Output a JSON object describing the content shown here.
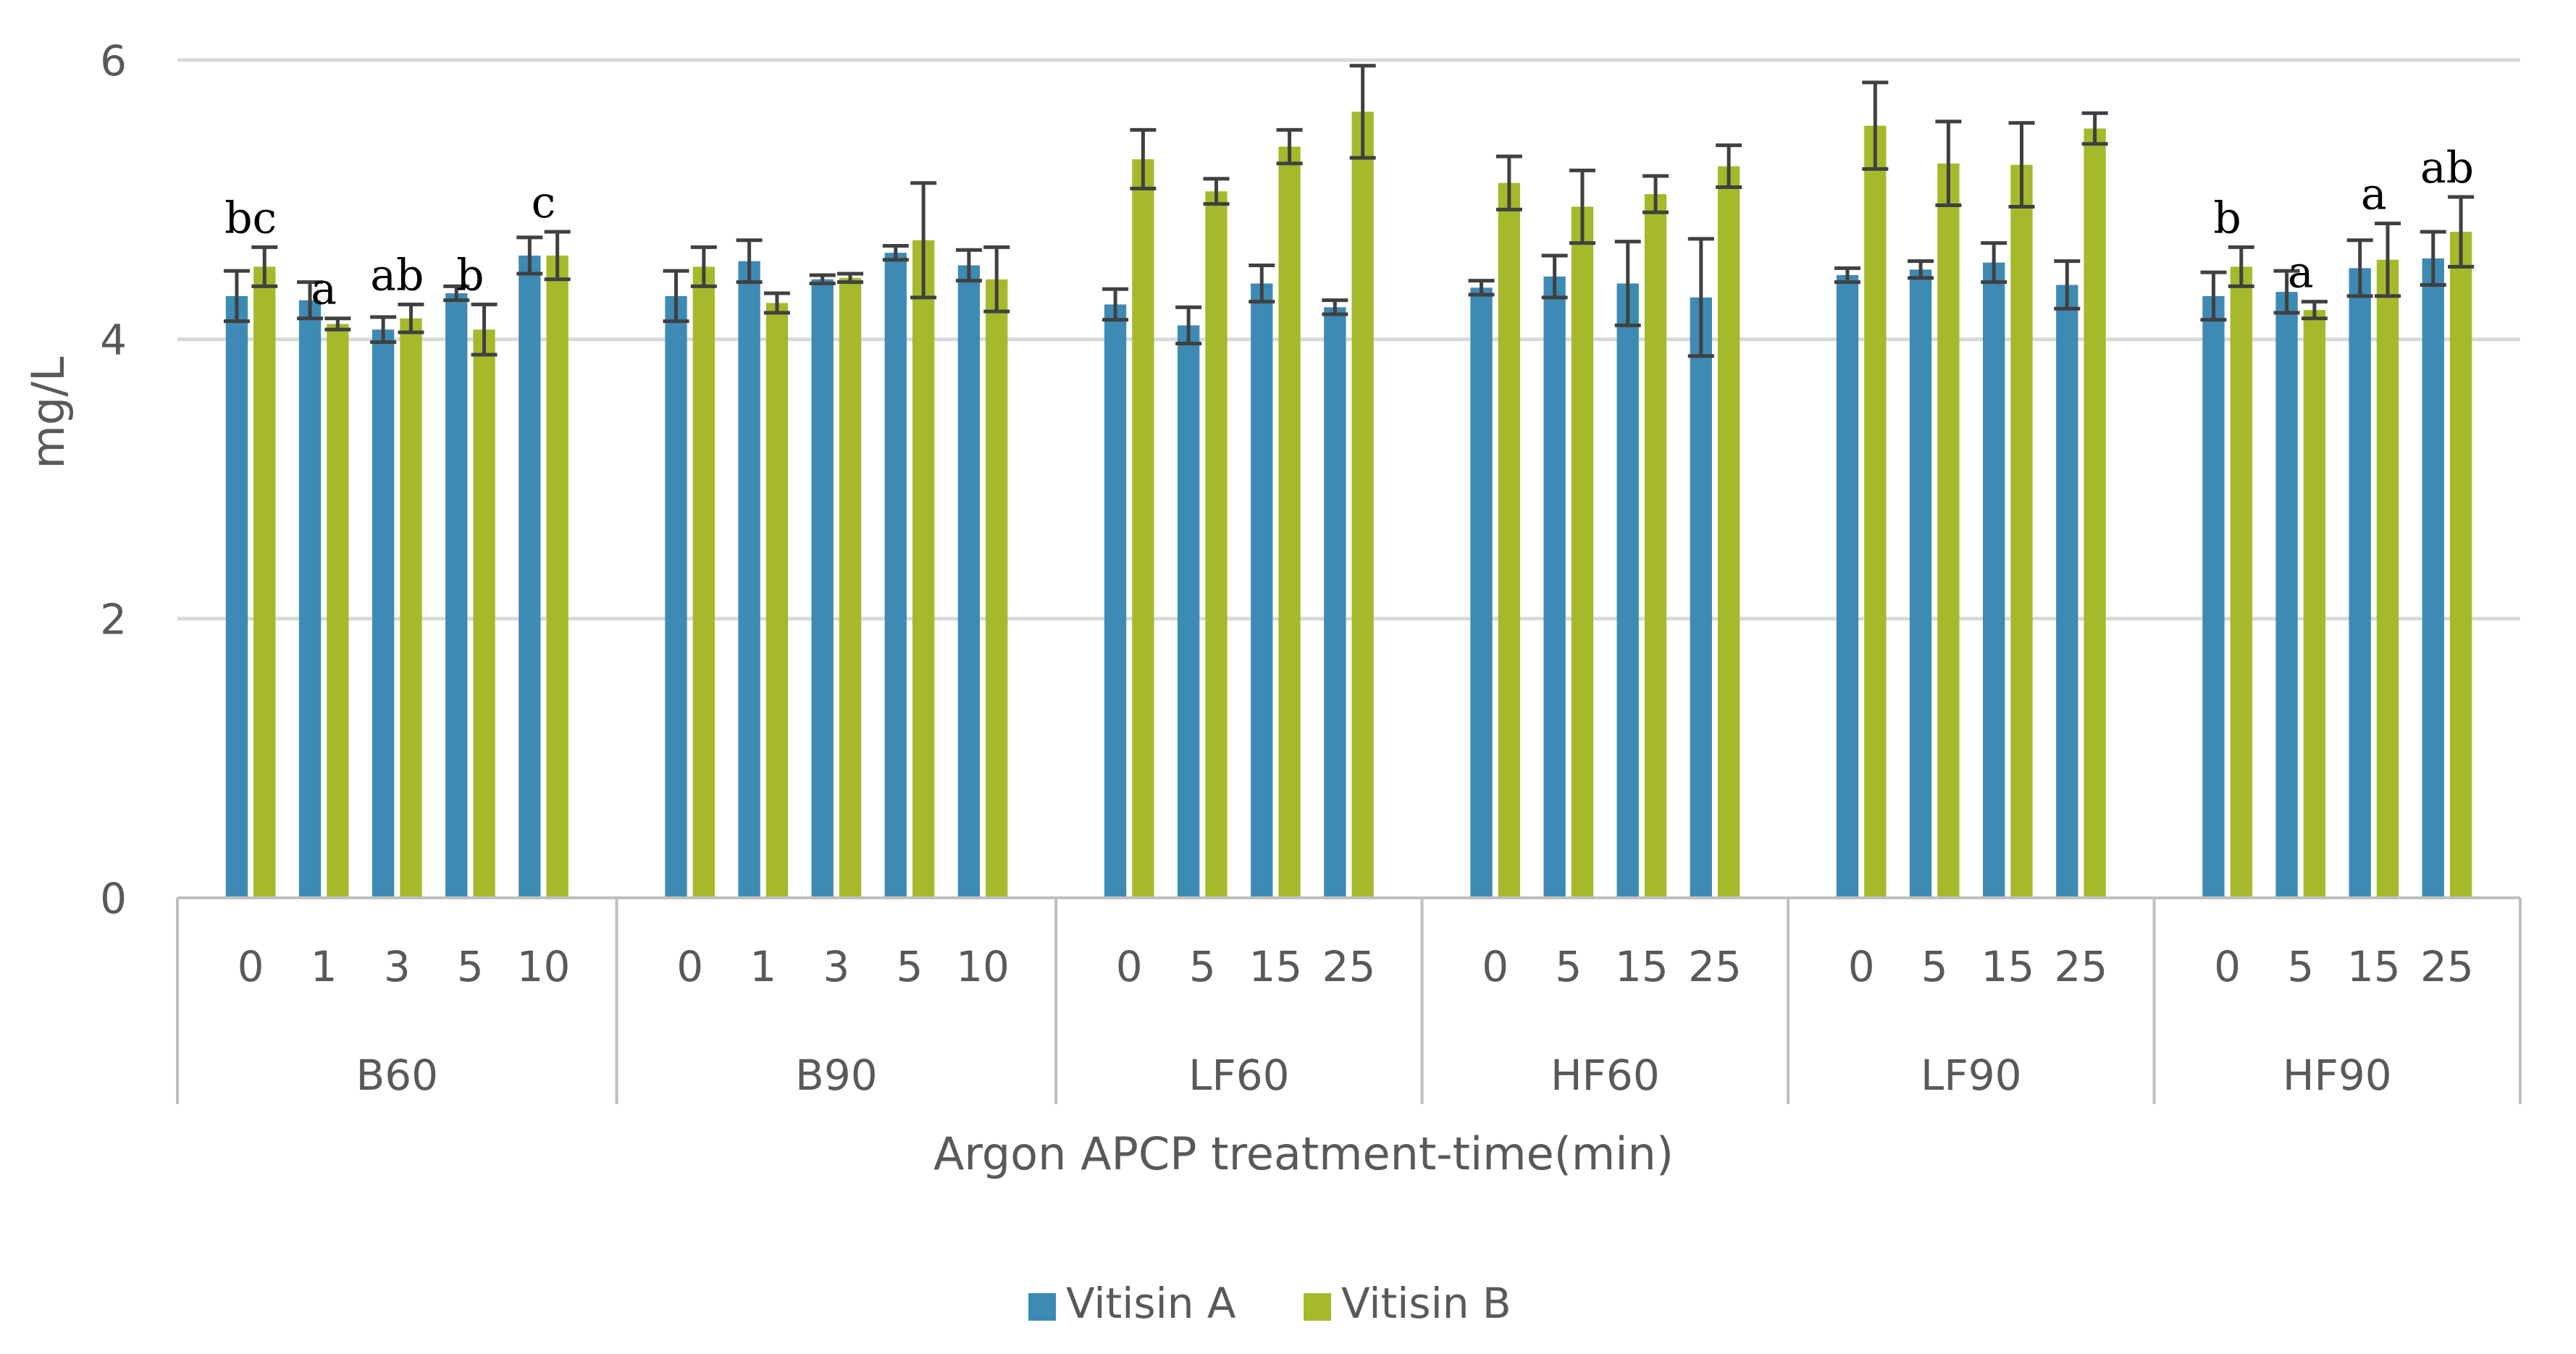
{
  "chart_data": {
    "type": "bar",
    "title": "",
    "xlabel": "Argon APCP treatment-time(min)",
    "ylabel": "mg/L",
    "ylim": [
      0,
      6
    ],
    "yticks": [
      0,
      2,
      4,
      6
    ],
    "grid": true,
    "legend_position": "bottom-center",
    "groups": [
      {
        "name": "B60",
        "categories": [
          "0",
          "1",
          "3",
          "5",
          "10"
        ]
      },
      {
        "name": "B90",
        "categories": [
          "0",
          "1",
          "3",
          "5",
          "10"
        ]
      },
      {
        "name": "LF60",
        "categories": [
          "0",
          "5",
          "15",
          "25"
        ]
      },
      {
        "name": "HF60",
        "categories": [
          "0",
          "5",
          "15",
          "25"
        ]
      },
      {
        "name": "LF90",
        "categories": [
          "0",
          "5",
          "15",
          "25"
        ]
      },
      {
        "name": "HF90",
        "categories": [
          "0",
          "5",
          "15",
          "25"
        ]
      }
    ],
    "series": [
      {
        "name": "Vitisin A",
        "color": "#3D8AB5",
        "values": [
          4.31,
          4.28,
          4.07,
          4.33,
          4.6,
          4.31,
          4.56,
          4.43,
          4.62,
          4.53,
          4.25,
          4.1,
          4.4,
          4.23,
          4.37,
          4.45,
          4.4,
          4.3,
          4.46,
          4.5,
          4.55,
          4.39,
          4.31,
          4.34,
          4.51,
          4.58
        ],
        "errors": [
          0.18,
          0.13,
          0.09,
          0.05,
          0.13,
          0.18,
          0.15,
          0.03,
          0.05,
          0.11,
          0.11,
          0.13,
          0.13,
          0.05,
          0.05,
          0.15,
          0.3,
          0.42,
          0.05,
          0.06,
          0.14,
          0.17,
          0.17,
          0.15,
          0.2,
          0.19
        ]
      },
      {
        "name": "Vitisin B",
        "color": "#A6B92A",
        "values": [
          4.52,
          4.11,
          4.15,
          4.07,
          4.6,
          4.52,
          4.26,
          4.44,
          4.71,
          4.43,
          5.29,
          5.06,
          5.38,
          5.63,
          5.12,
          4.95,
          5.04,
          5.24,
          5.53,
          5.26,
          5.25,
          5.51,
          4.52,
          4.21,
          4.57,
          4.77
        ],
        "errors": [
          0.14,
          0.04,
          0.1,
          0.18,
          0.17,
          0.14,
          0.07,
          0.03,
          0.41,
          0.23,
          0.21,
          0.09,
          0.12,
          0.33,
          0.19,
          0.26,
          0.13,
          0.15,
          0.31,
          0.3,
          0.3,
          0.11,
          0.14,
          0.06,
          0.26,
          0.25
        ]
      }
    ],
    "annotations": [
      {
        "group": "B60",
        "category": "0",
        "text": "bc"
      },
      {
        "group": "B60",
        "category": "1",
        "text": "a"
      },
      {
        "group": "B60",
        "category": "3",
        "text": "ab"
      },
      {
        "group": "B60",
        "category": "5",
        "text": "b"
      },
      {
        "group": "B60",
        "category": "10",
        "text": "c"
      },
      {
        "group": "HF90",
        "category": "0",
        "text": "b"
      },
      {
        "group": "HF90",
        "category": "5",
        "text": "a"
      },
      {
        "group": "HF90",
        "category": "15",
        "text": "a"
      },
      {
        "group": "HF90",
        "category": "25",
        "text": "ab"
      }
    ]
  }
}
